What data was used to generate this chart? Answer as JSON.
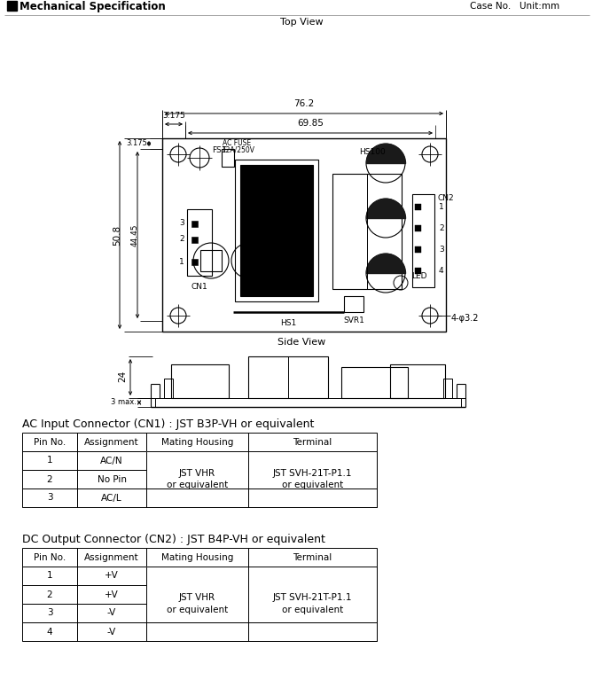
{
  "title": "Mechanical Specification",
  "case_note": "Case No.   Unit:mm",
  "top_view_label": "Top View",
  "side_view_label": "Side View",
  "bg_color": "#ffffff",
  "line_color": "#000000",
  "dim_76_2": "76.2",
  "dim_69_85": "69.85",
  "dim_3_175_top": "3.175",
  "dim_3_175_left": "3.175",
  "dim_50_8": "50.8",
  "dim_44_45": "44.45",
  "dim_4phi32": "4-φ3.2",
  "dim_24": "24",
  "dim_3max": "3 max.",
  "ac_table_title": "AC Input Connector (CN1) : JST B3P-VH or equivalent",
  "ac_table_headers": [
    "Pin No.",
    "Assignment",
    "Mating Housing",
    "Terminal"
  ],
  "ac_table_rows": [
    [
      "1",
      "AC/N",
      "JST VHR\nor equivalent",
      "JST SVH-21T-P1.1\nor equivalent"
    ],
    [
      "2",
      "No Pin",
      "",
      ""
    ],
    [
      "3",
      "AC/L",
      "",
      ""
    ]
  ],
  "dc_table_title": "DC Output Connector (CN2) : JST B4P-VH or equivalent",
  "dc_table_headers": [
    "Pin No.",
    "Assignment",
    "Mating Housing",
    "Terminal"
  ],
  "dc_table_rows": [
    [
      "1",
      "+V",
      "JST VHR\nor equivalent",
      "JST SVH-21T-P1.1\nor equivalent"
    ],
    [
      "2",
      "+V",
      "",
      ""
    ],
    [
      "3",
      "-V",
      "",
      ""
    ],
    [
      "4",
      "-V",
      "",
      ""
    ]
  ]
}
